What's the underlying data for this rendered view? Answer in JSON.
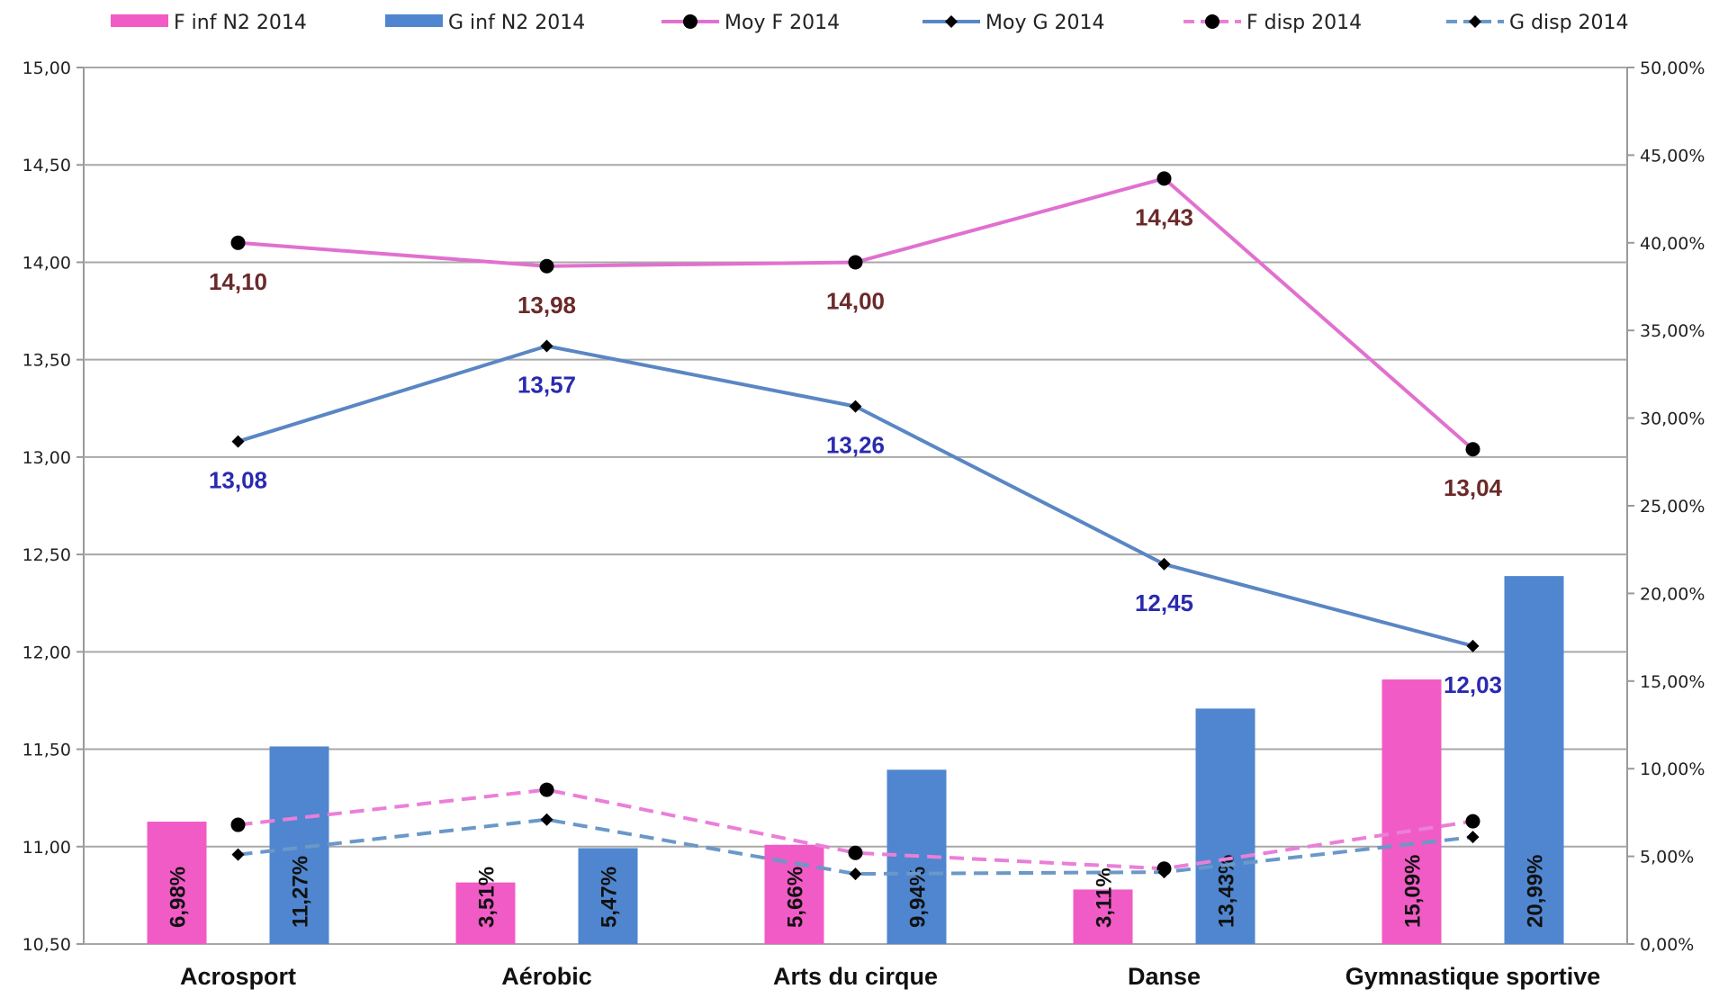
{
  "chart_data": {
    "type": "bar",
    "categories": [
      "Acrosport",
      "Aérobic",
      "Arts du cirque",
      "Danse",
      "Gymnastique sportive"
    ],
    "y_left": {
      "ylim": [
        10.5,
        15.0
      ],
      "ticks": [
        "10,50",
        "11,00",
        "11,50",
        "12,00",
        "12,50",
        "13,00",
        "13,50",
        "14,00",
        "14,50",
        "15,00"
      ]
    },
    "y_right": {
      "ylim": [
        0,
        50
      ],
      "unit": "%",
      "ticks": [
        "0,00%",
        "5,00%",
        "10,00%",
        "15,00%",
        "20,00%",
        "25,00%",
        "30,00%",
        "35,00%",
        "40,00%",
        "45,00%",
        "50,00%"
      ]
    },
    "grid": true,
    "legend_position": "top",
    "series": [
      {
        "name": "F inf N2 2014",
        "kind": "bar",
        "axis": "right",
        "color": "#f15bc6",
        "values": [
          6.98,
          3.51,
          5.66,
          3.11,
          15.09
        ],
        "labels": [
          "6,98%",
          "3,51%",
          "5,66%",
          "3,11%",
          "15,09%"
        ]
      },
      {
        "name": "G inf N2 2014",
        "kind": "bar",
        "axis": "right",
        "color": "#4f86cf",
        "values": [
          11.27,
          5.47,
          9.94,
          13.43,
          20.99
        ],
        "labels": [
          "11,27%",
          "5,47%",
          "9,94%",
          "13,43%",
          "20,99%"
        ]
      },
      {
        "name": "Moy F 2014",
        "kind": "line",
        "axis": "left",
        "color": "#e170cf",
        "marker": "circle",
        "dashed": false,
        "values": [
          14.1,
          13.98,
          14.0,
          14.43,
          13.04
        ],
        "labels": [
          "14,10",
          "13,98",
          "14,00",
          "14,43",
          "13,04"
        ],
        "label_color": "#6b2a2a"
      },
      {
        "name": "Moy G 2014",
        "kind": "line",
        "axis": "left",
        "color": "#5a86c4",
        "marker": "diamond",
        "dashed": false,
        "values": [
          13.08,
          13.57,
          13.26,
          12.45,
          12.03
        ],
        "labels": [
          "13,08",
          "13,57",
          "13,26",
          "12,45",
          "12,03"
        ],
        "label_color": "#2a2ab0"
      },
      {
        "name": "F disp 2014",
        "kind": "line",
        "axis": "right",
        "color": "#ea7fd8",
        "marker": "circle",
        "dashed": true,
        "values": [
          6.8,
          8.8,
          5.2,
          4.3,
          7.0
        ]
      },
      {
        "name": "G disp 2014",
        "kind": "line",
        "axis": "right",
        "color": "#6a98c8",
        "marker": "diamond",
        "dashed": true,
        "values": [
          5.1,
          7.1,
          4.0,
          4.1,
          6.1
        ]
      }
    ]
  }
}
